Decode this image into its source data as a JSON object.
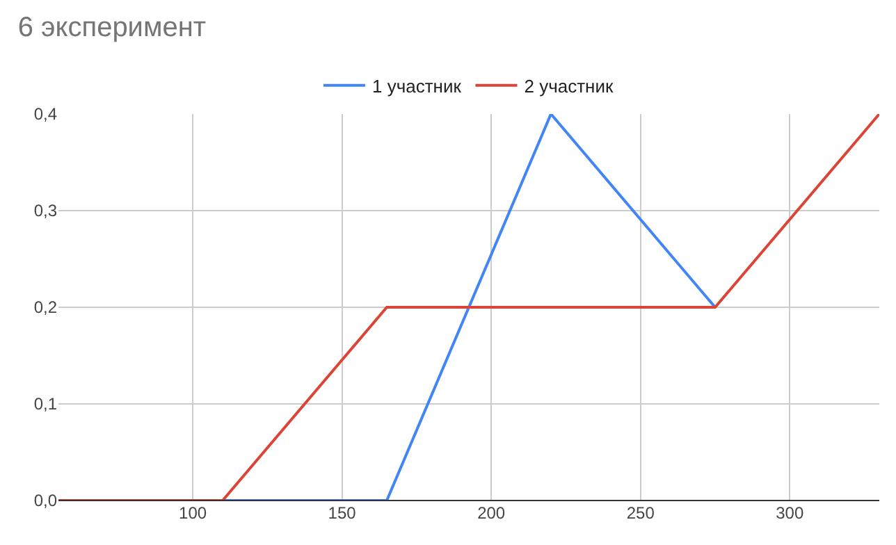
{
  "chart_data": {
    "type": "line",
    "title": "6 эксперимент",
    "x": [
      55,
      110,
      165,
      220,
      275,
      330
    ],
    "series": [
      {
        "name": "1 участник",
        "color": "#4285f4",
        "values": [
          0,
          0,
          0,
          0.4,
          0.2,
          null
        ]
      },
      {
        "name": "2 участник",
        "color": "#db4437",
        "values": [
          0,
          0,
          0.2,
          0.2,
          0.2,
          0.4
        ]
      }
    ],
    "xlim": [
      55,
      330
    ],
    "xticks": [
      100,
      150,
      200,
      250,
      300
    ],
    "ylim": [
      0,
      0.4
    ],
    "yticks": [
      {
        "value": 0,
        "label": "0,0"
      },
      {
        "value": 0.1,
        "label": "0,1"
      },
      {
        "value": 0.2,
        "label": "0,2"
      },
      {
        "value": 0.3,
        "label": "0,3"
      },
      {
        "value": 0.4,
        "label": "0,4"
      }
    ],
    "grid": true,
    "legend": "top",
    "marker": "none",
    "line_style": "solid"
  }
}
